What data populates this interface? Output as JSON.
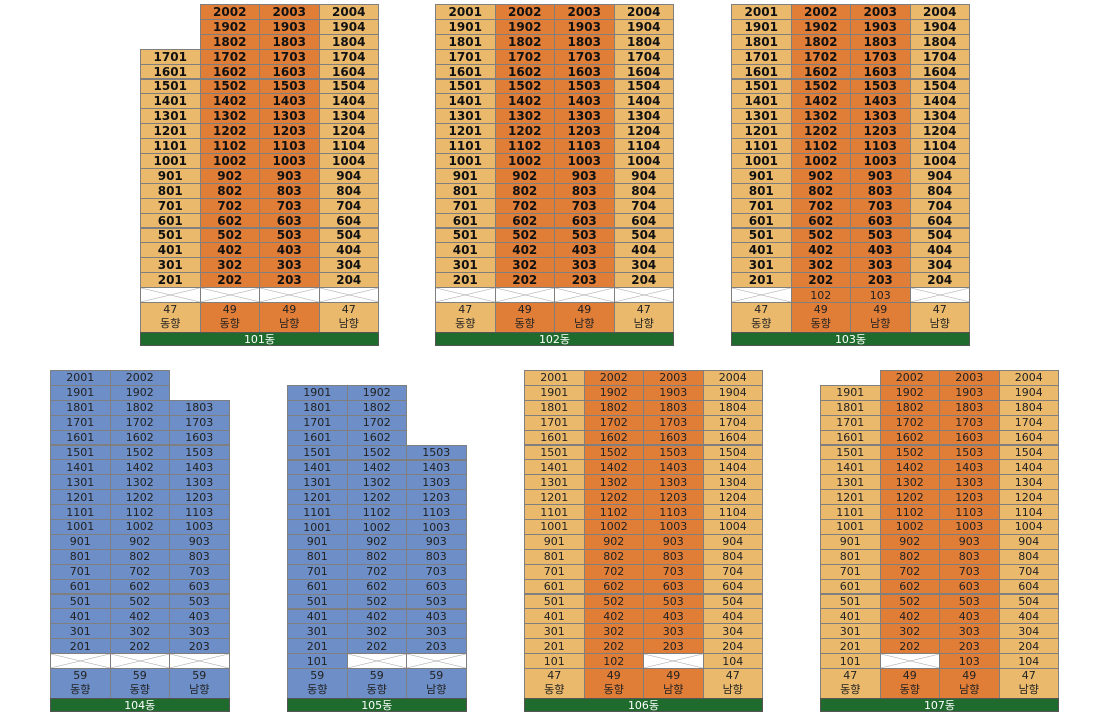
{
  "colors": {
    "yellow": "#eab96c",
    "orange": "#e07d37",
    "blue": "#6d8ec6",
    "label_green": "#1f6b2e"
  },
  "buildings": [
    {
      "name": "101동",
      "scheme": "yellow-orange",
      "bold": true,
      "top_floor": 20,
      "lines": 4,
      "line_top_floor": [
        17,
        20,
        20,
        20
      ],
      "line_colors": [
        "yellow",
        "orange",
        "orange",
        "yellow"
      ],
      "pilotis_units": [],
      "area": [
        "47",
        "49",
        "49",
        "47"
      ],
      "facing": [
        "동향",
        "동향",
        "남향",
        "남향"
      ]
    },
    {
      "name": "102동",
      "scheme": "yellow-orange",
      "bold": true,
      "top_floor": 20,
      "lines": 4,
      "line_top_floor": [
        20,
        20,
        20,
        20
      ],
      "line_colors": [
        "yellow",
        "orange",
        "orange",
        "yellow"
      ],
      "pilotis_units": [],
      "area": [
        "47",
        "49",
        "49",
        "47"
      ],
      "facing": [
        "동향",
        "동향",
        "남향",
        "남향"
      ]
    },
    {
      "name": "103동",
      "scheme": "yellow-orange",
      "bold": true,
      "top_floor": 20,
      "lines": 4,
      "line_top_floor": [
        20,
        20,
        20,
        20
      ],
      "line_colors": [
        "yellow",
        "orange",
        "orange",
        "yellow"
      ],
      "pilotis_units": [
        "",
        "102",
        "103",
        ""
      ],
      "area": [
        "47",
        "49",
        "49",
        "47"
      ],
      "facing": [
        "동향",
        "동향",
        "남향",
        "남향"
      ]
    },
    {
      "name": "104동",
      "scheme": "blue",
      "bold": false,
      "top_floor": 20,
      "lines": 3,
      "line_top_floor": [
        20,
        20,
        18
      ],
      "line_colors": [
        "blue",
        "blue",
        "blue"
      ],
      "pilotis_units": [],
      "area": [
        "59",
        "59",
        "59"
      ],
      "facing": [
        "동향",
        "동향",
        "남향"
      ]
    },
    {
      "name": "105동",
      "scheme": "blue",
      "bold": false,
      "top_floor": 19,
      "lines": 3,
      "line_top_floor": [
        19,
        19,
        15
      ],
      "line_colors": [
        "blue",
        "blue",
        "blue"
      ],
      "pilotis_units": [
        "101",
        "",
        ""
      ],
      "area": [
        "59",
        "59",
        "59"
      ],
      "facing": [
        "동향",
        "동향",
        "남향"
      ]
    },
    {
      "name": "106동",
      "scheme": "yellow-orange",
      "bold": false,
      "top_floor": 20,
      "lines": 4,
      "line_top_floor": [
        20,
        20,
        20,
        20
      ],
      "line_colors": [
        "yellow",
        "orange",
        "orange",
        "yellow"
      ],
      "pilotis_units": [
        "101",
        "102",
        "",
        "104"
      ],
      "area": [
        "47",
        "49",
        "49",
        "47"
      ],
      "facing": [
        "동향",
        "동향",
        "남향",
        "남향"
      ]
    },
    {
      "name": "107동",
      "scheme": "yellow-orange",
      "bold": false,
      "top_floor": 20,
      "lines": 4,
      "line_top_floor": [
        19,
        20,
        20,
        20
      ],
      "line_colors": [
        "yellow",
        "orange",
        "orange",
        "yellow"
      ],
      "pilotis_units": [
        "101",
        "",
        "103",
        "104"
      ],
      "area": [
        "47",
        "49",
        "49",
        "47"
      ],
      "facing": [
        "동향",
        "동향",
        "남향",
        "남향"
      ]
    }
  ]
}
